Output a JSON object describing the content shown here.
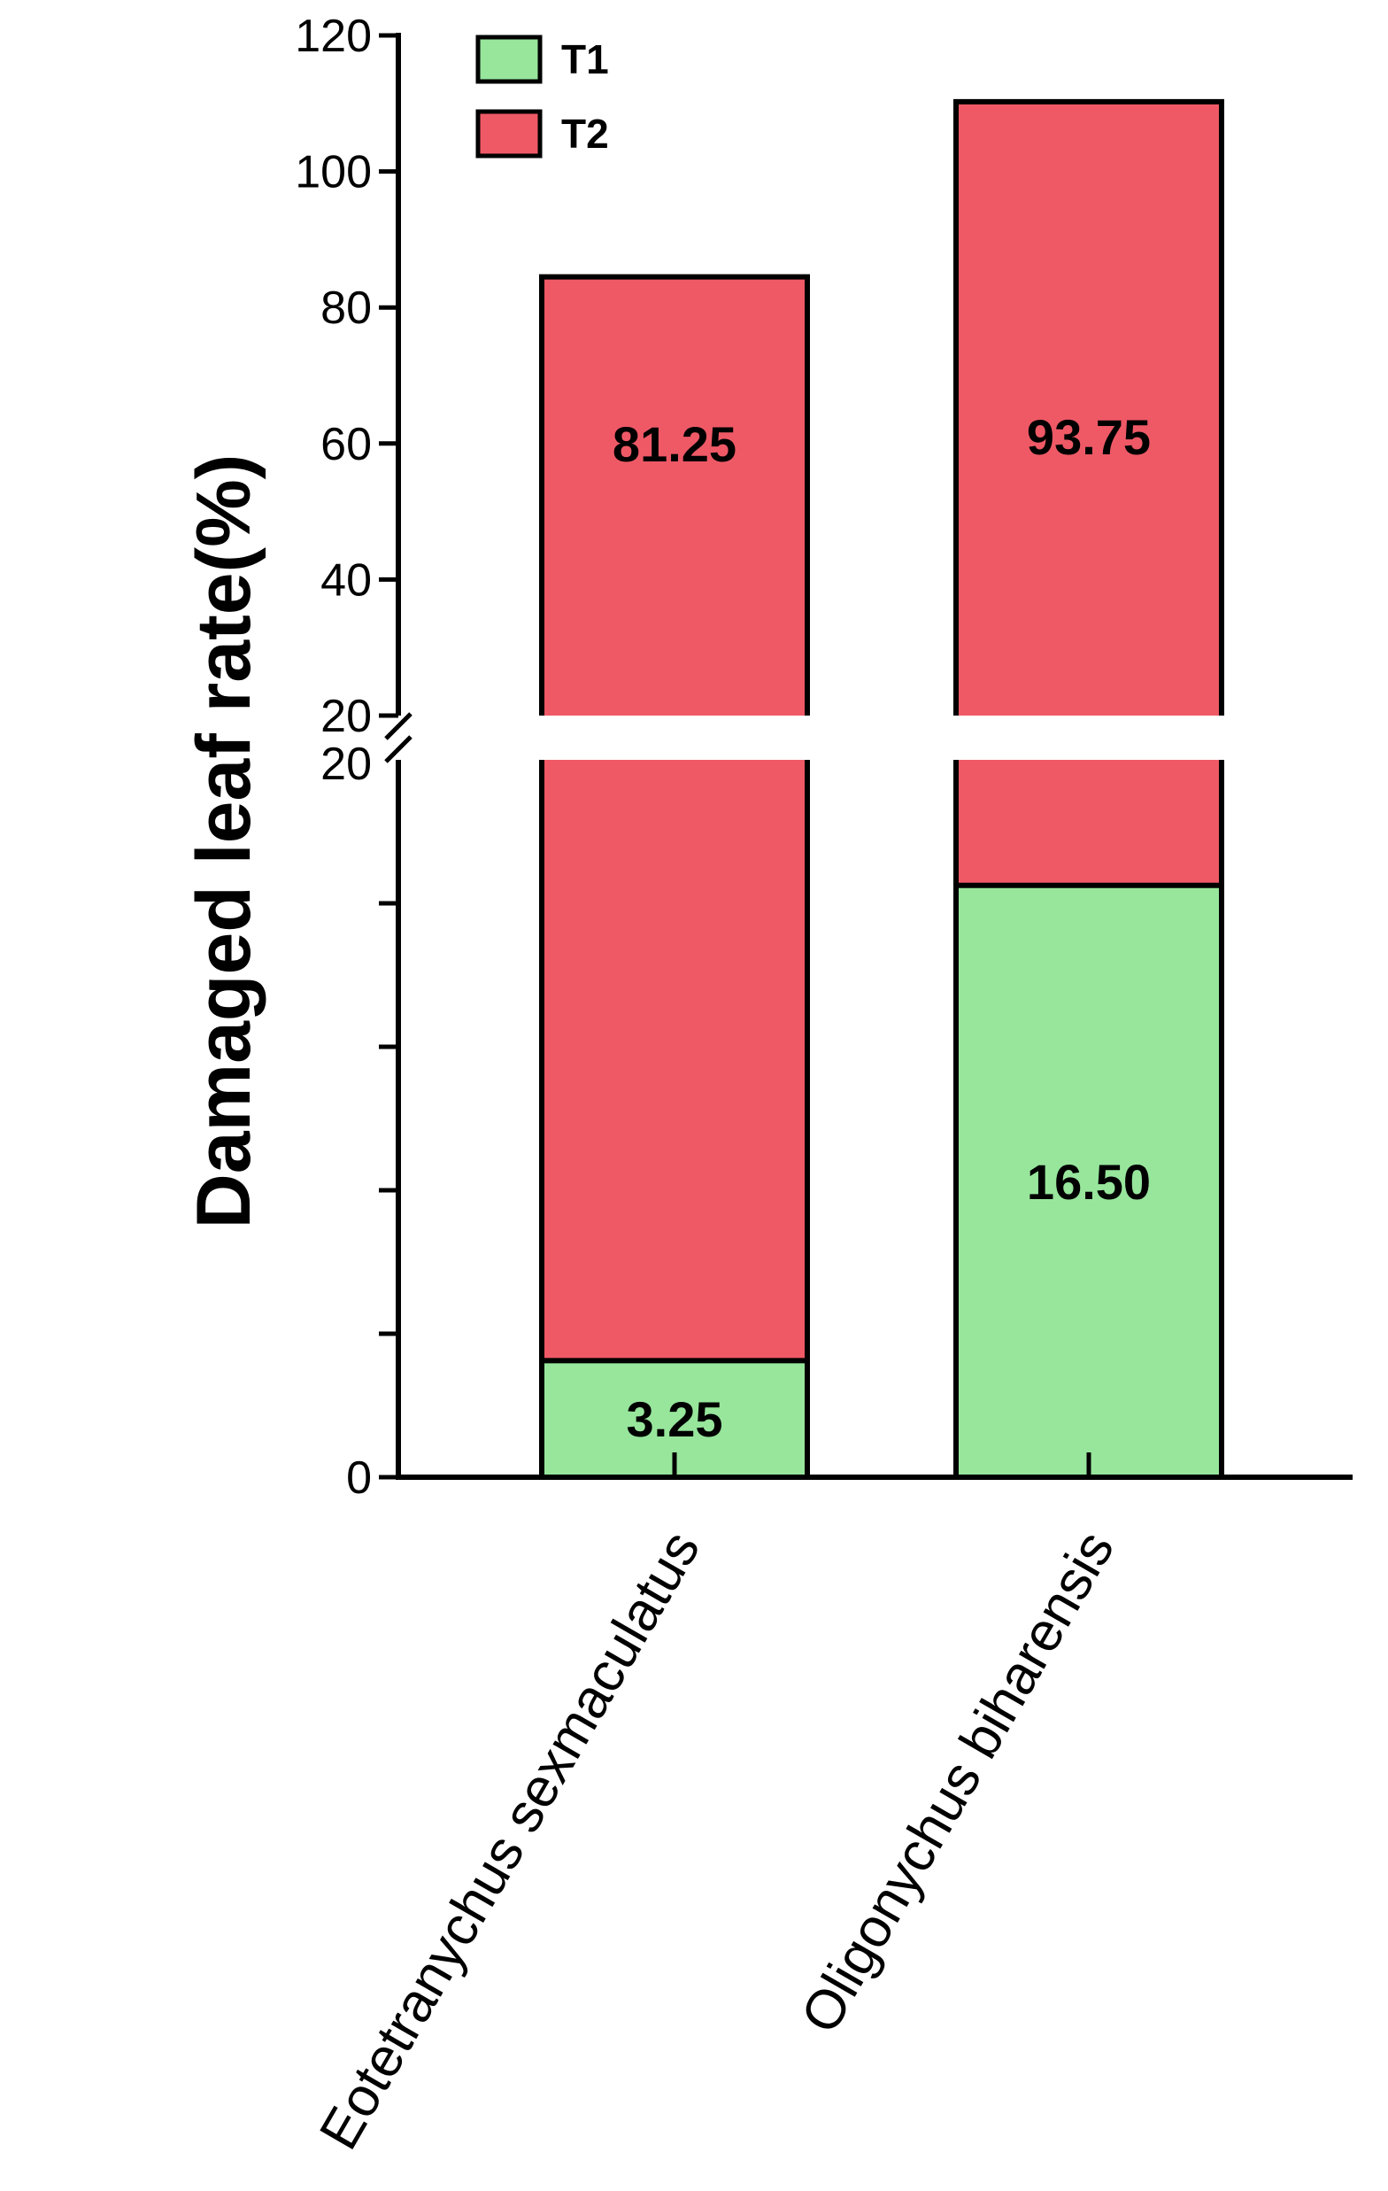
{
  "chart_data": {
    "type": "bar",
    "stacked": true,
    "categories": [
      "Eotetranychus sexmaculatus",
      "Oligonychus biharensis"
    ],
    "series": [
      {
        "name": "T1",
        "values": [
          3.25,
          16.5
        ],
        "labels": [
          "3.25",
          "16.50"
        ],
        "color": "#97e69c"
      },
      {
        "name": "T2",
        "values": [
          81.25,
          93.75
        ],
        "labels": [
          "81.25",
          "93.75"
        ],
        "color": "#ef5966"
      }
    ],
    "ylabel": "Damaged leaf  rate(%)",
    "y_break": [
      20,
      20
    ],
    "ylim_lower": [
      0,
      20
    ],
    "ylim_upper": [
      20,
      120
    ],
    "yticks_upper": [
      "120",
      "100",
      "80",
      "60",
      "40",
      "20"
    ],
    "yticks_lower": [
      "20",
      "0"
    ],
    "legend_position": "top-left",
    "grid": false
  }
}
